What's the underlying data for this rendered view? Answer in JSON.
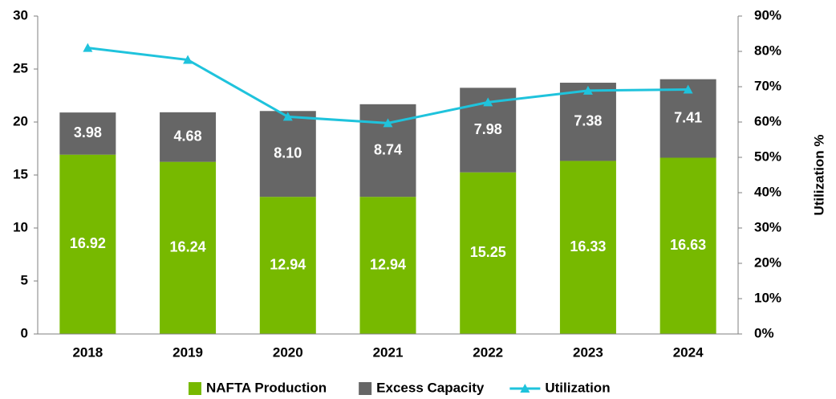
{
  "chart_data": {
    "type": "bar",
    "categories": [
      "2018",
      "2019",
      "2020",
      "2021",
      "2022",
      "2023",
      "2024"
    ],
    "series": [
      {
        "name": "NAFTA Production",
        "color": "#77b900",
        "values": [
          16.92,
          16.24,
          12.94,
          12.94,
          15.25,
          16.33,
          16.63
        ]
      },
      {
        "name": "Excess Capacity",
        "color": "#666666",
        "values": [
          3.98,
          4.68,
          8.1,
          8.74,
          7.98,
          7.38,
          7.41
        ],
        "value_labels": [
          "3.98",
          "4.68",
          "8.10",
          "8.74",
          "7.98",
          "7.38",
          "7.41"
        ]
      },
      {
        "name": "Utilization",
        "type": "line",
        "axis": "y2",
        "color": "#1fc3dc",
        "values": [
          81.0,
          77.6,
          61.5,
          59.7,
          65.6,
          68.9,
          69.2
        ]
      }
    ],
    "stacked": true,
    "ylim": [
      0,
      30
    ],
    "yticks": [
      0,
      5,
      10,
      15,
      20,
      25,
      30
    ],
    "y2label": "Utilization %",
    "y2lim": [
      0,
      90
    ],
    "y2ticks": [
      {
        "value": 0,
        "label": "0%"
      },
      {
        "value": 10,
        "label": "10%"
      },
      {
        "value": 20,
        "label": "20%"
      },
      {
        "value": 30,
        "label": "30%"
      },
      {
        "value": 40,
        "label": "40%"
      },
      {
        "value": 50,
        "label": "50%"
      },
      {
        "value": 60,
        "label": "60%"
      },
      {
        "value": 70,
        "label": "70%"
      },
      {
        "value": 80,
        "label": "80%"
      },
      {
        "value": 90,
        "label": "90%"
      }
    ],
    "legend": "bottom"
  }
}
